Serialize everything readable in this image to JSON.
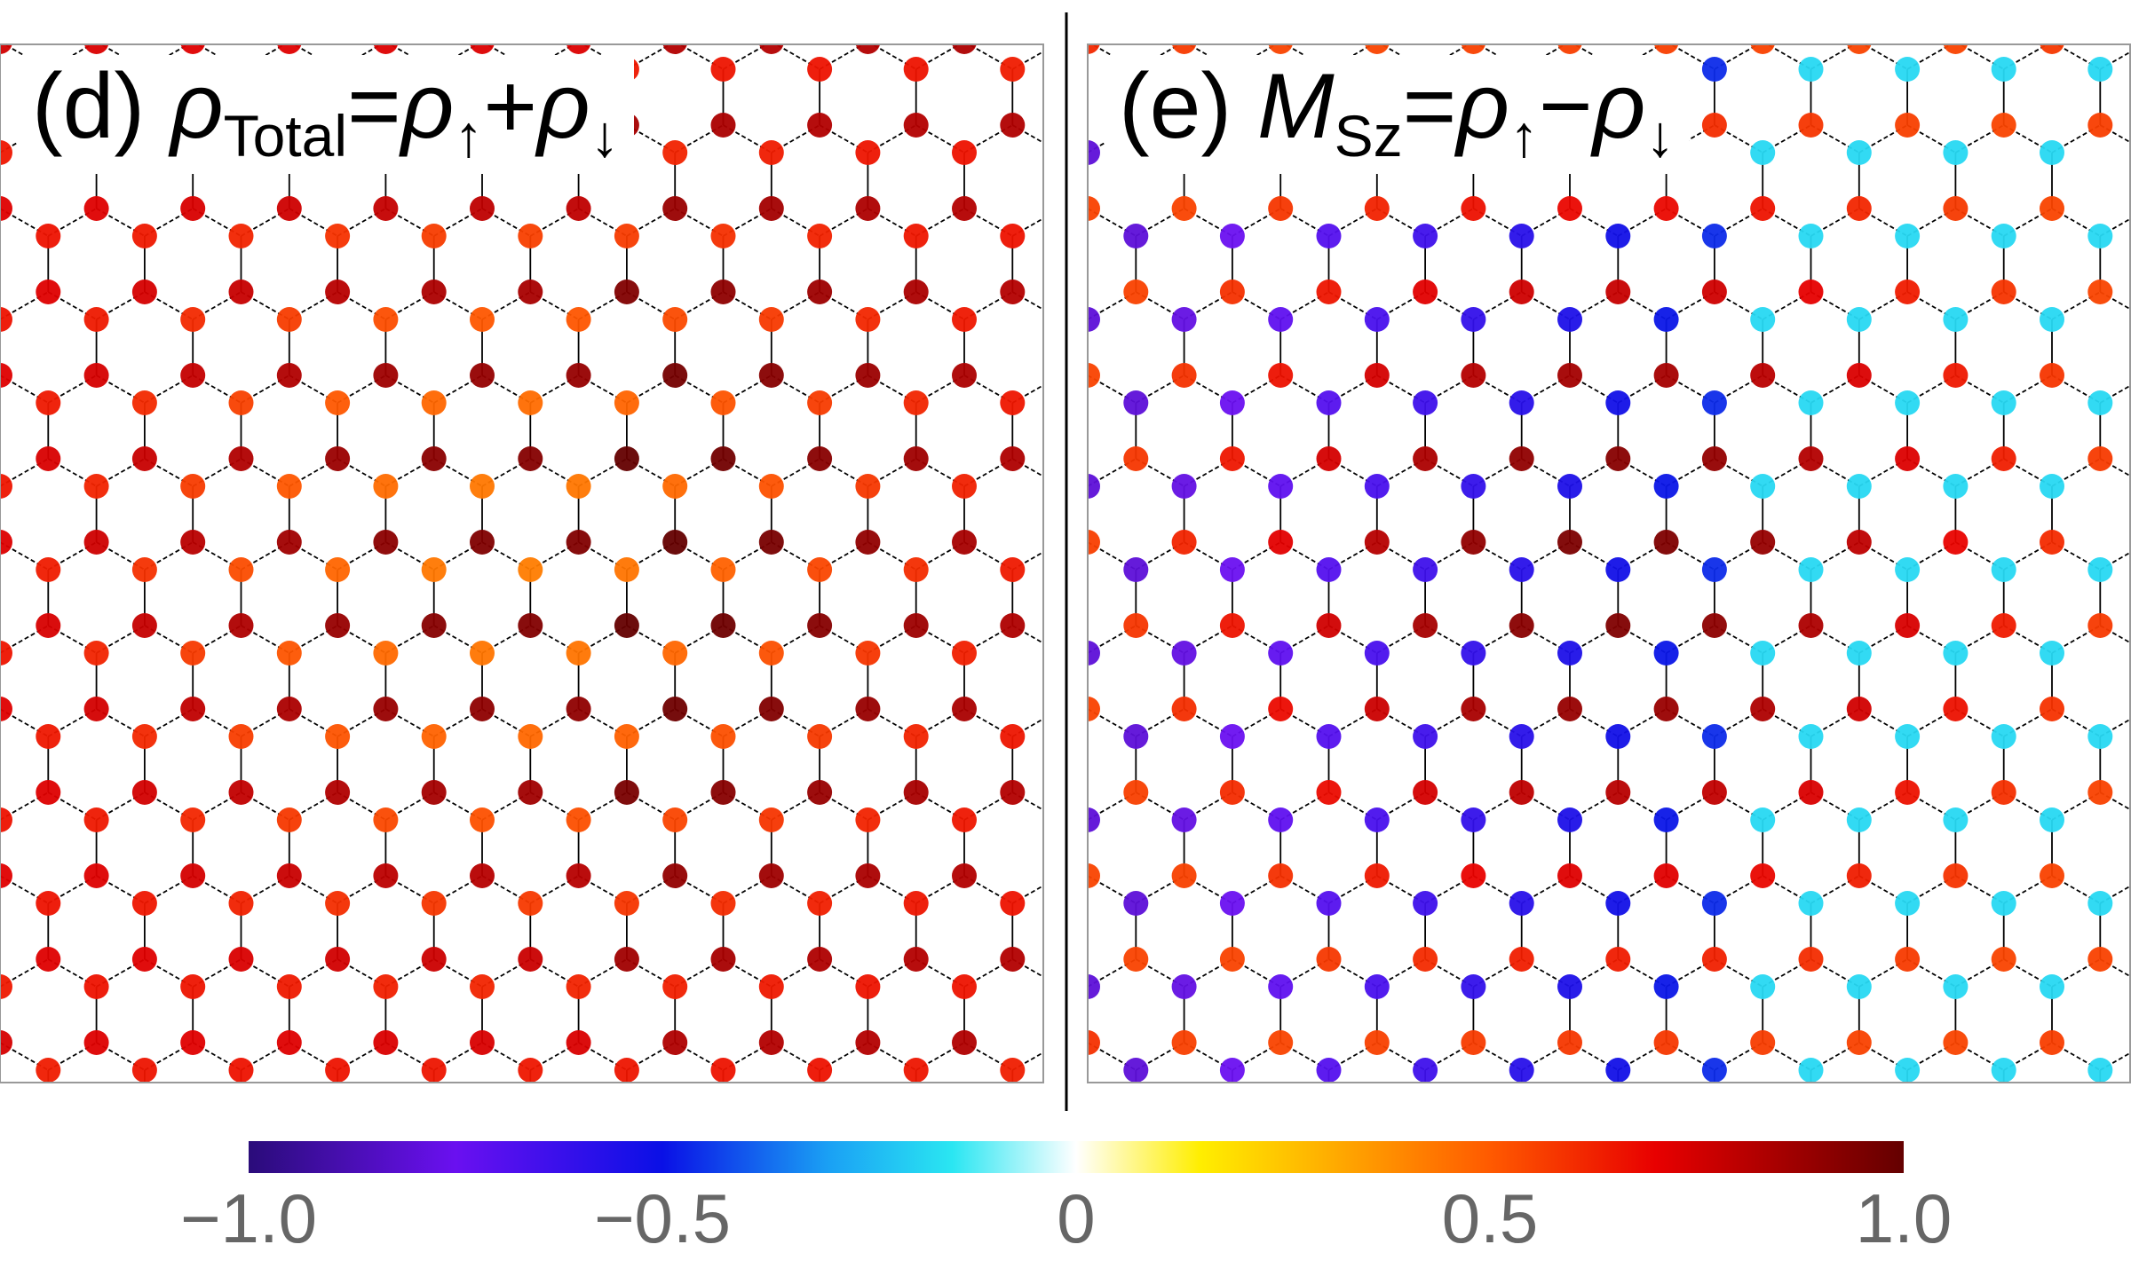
{
  "panels": {
    "d": {
      "prefix": "(d) ",
      "sym": "ρ",
      "sub": "Total",
      "eq": "=",
      "a": "ρ",
      "asub": "↑",
      "op": "+",
      "b": "ρ",
      "bsub": "↓",
      "mode": "total"
    },
    "e": {
      "prefix": "(e) ",
      "sym": "M",
      "sub": "Sz",
      "eq": "=",
      "a": "ρ",
      "asub": "↑",
      "op": "−",
      "b": "ρ",
      "bsub": "↓",
      "mode": "spin"
    }
  },
  "colorbar": {
    "min": -1.0,
    "max": 1.0,
    "ticks": [
      "−1.0",
      "−0.5",
      "0",
      "0.5",
      "1.0"
    ],
    "tick_values": [
      -1.0,
      -0.5,
      0,
      0.5,
      1.0
    ],
    "stops": [
      {
        "v": -1.0,
        "color": "#2a0c7a"
      },
      {
        "v": -0.75,
        "color": "#6a10f0"
      },
      {
        "v": -0.5,
        "color": "#0a10e6"
      },
      {
        "v": -0.3,
        "color": "#1aa0f4"
      },
      {
        "v": -0.15,
        "color": "#2ae6f2"
      },
      {
        "v": 0.0,
        "color": "#ffffff"
      },
      {
        "v": 0.15,
        "color": "#ffee00"
      },
      {
        "v": 0.3,
        "color": "#ffb000"
      },
      {
        "v": 0.5,
        "color": "#ff5a00"
      },
      {
        "v": 0.7,
        "color": "#e80000"
      },
      {
        "v": 1.0,
        "color": "#640000"
      }
    ]
  },
  "colors": {
    "bond": "#000000",
    "frame": "#999999",
    "divider": "#000000"
  }
}
